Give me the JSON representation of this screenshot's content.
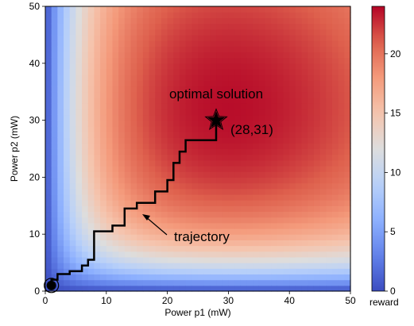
{
  "chart_data": {
    "type": "heatmap",
    "xlabel": "Power p1  (mW)",
    "ylabel": "Power p2  (mW)",
    "xlim": [
      0,
      50
    ],
    "ylim": [
      0,
      50
    ],
    "x_ticks": [
      0,
      10,
      20,
      30,
      40,
      50
    ],
    "y_ticks": [
      0,
      10,
      20,
      30,
      40,
      50
    ],
    "colorbar": {
      "label": "reward",
      "range": [
        0,
        24
      ],
      "ticks": [
        0,
        5,
        10,
        15,
        20
      ],
      "colormap": "coolwarm"
    },
    "peak": {
      "x": 28,
      "y": 31,
      "value": 24
    },
    "trajectory": {
      "x": [
        1,
        1,
        2,
        2,
        4,
        4,
        6,
        6,
        7,
        7,
        8,
        8,
        11,
        11,
        13,
        13,
        15,
        15,
        18,
        18,
        20,
        20,
        21,
        21,
        22,
        22,
        23,
        23,
        28,
        28
      ],
      "y": [
        1,
        2,
        2,
        3,
        3,
        3.5,
        3.5,
        4.5,
        4.5,
        5.5,
        5.5,
        10.5,
        10.5,
        11.5,
        11.5,
        14.5,
        14.5,
        15.5,
        15.5,
        17.5,
        17.5,
        19.5,
        19.5,
        22.5,
        22.5,
        24.5,
        24.5,
        26.5,
        26.5,
        30
      ]
    },
    "start_point": {
      "x": 1,
      "y": 1
    },
    "end_point": {
      "x": 28,
      "y": 30
    },
    "annotations": {
      "optimal_label": "optimal solution",
      "optimal_coords": "(28,31)",
      "trajectory_label": "trajectory"
    }
  }
}
